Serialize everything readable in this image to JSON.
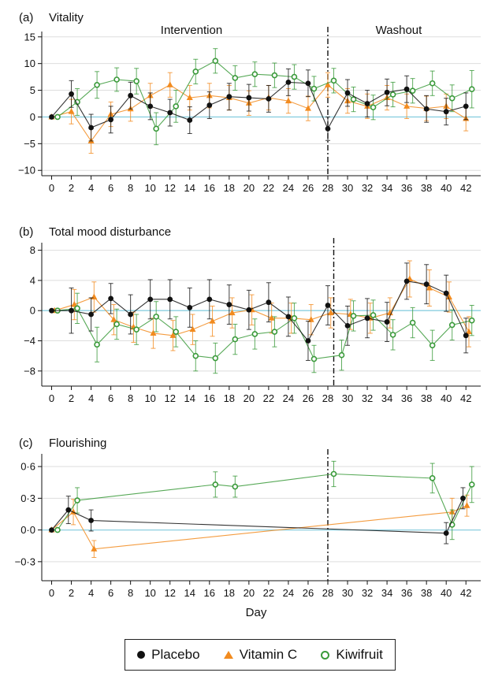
{
  "colors": {
    "placebo": "#111111",
    "vitamin_c": "#f28b1f",
    "kiwifruit": "#3a9a3a",
    "zero_line": "#8ccfe0",
    "grid": "#dddddd"
  },
  "legend": {
    "placebo": "Placebo",
    "vitamin_c": "Vitamin C",
    "kiwifruit": "Kiwifruit"
  },
  "x_axis_title": "Day",
  "chart_data": [
    {
      "type": "line",
      "panel_label": "(a)",
      "title": "Vitality",
      "phase_labels": [
        "Intervention",
        "Washout"
      ],
      "divider_day": 28,
      "xlabel": "Day",
      "xlim": [
        -1,
        43.5
      ],
      "ylim": [
        -11,
        16
      ],
      "yticks": [
        -10,
        -5,
        0,
        5,
        10,
        15
      ],
      "ytick_labels": [
        "−10",
        "−5",
        "0",
        "5",
        "10",
        "15"
      ],
      "xticks": [
        0,
        2,
        4,
        6,
        8,
        10,
        12,
        14,
        16,
        18,
        20,
        22,
        24,
        26,
        28,
        30,
        32,
        34,
        36,
        38,
        40,
        42
      ],
      "series": [
        {
          "name": "Placebo",
          "key": "placebo",
          "marker": "dot",
          "x": [
            0,
            2,
            4,
            6,
            8,
            10,
            12,
            14,
            16,
            18,
            20,
            22,
            24,
            26,
            28,
            30,
            32,
            34,
            36,
            38,
            40,
            42
          ],
          "y": [
            0,
            4.3,
            -2,
            -0.5,
            4,
            2,
            0.8,
            -0.6,
            2.2,
            3.8,
            3.6,
            3.4,
            6.5,
            6.3,
            -2.2,
            4.5,
            2.5,
            4.6,
            5.2,
            1.5,
            1,
            2
          ],
          "err": [
            0,
            2.5,
            2.5,
            2.5,
            2.5,
            2.5,
            2.5,
            2.5,
            2.5,
            2.5,
            2.5,
            2.5,
            2.5,
            2.5,
            2.2,
            2.5,
            2.5,
            2.5,
            2.5,
            2.5,
            2.5,
            2.5
          ]
        },
        {
          "name": "Vitamin C",
          "key": "vitamin_c",
          "marker": "triangle",
          "x": [
            0,
            2,
            4,
            6,
            8,
            10,
            12,
            14,
            16,
            18,
            20,
            22,
            24,
            26,
            28,
            30,
            32,
            34,
            36,
            38,
            40,
            42
          ],
          "y": [
            0,
            1,
            -4.5,
            0.5,
            1.5,
            4,
            6,
            3.6,
            4,
            3.6,
            2.6,
            3.6,
            3,
            1.6,
            6,
            3,
            2,
            3.6,
            2,
            1.6,
            2,
            -0.3
          ],
          "err": [
            0,
            2.3,
            2.3,
            2.3,
            2.3,
            2.3,
            2.3,
            2.3,
            2.3,
            2.3,
            2.3,
            2.3,
            2.3,
            2.3,
            2.3,
            2.3,
            2.3,
            2.3,
            2.3,
            2.3,
            2.3,
            2.3
          ]
        },
        {
          "name": "Kiwifruit",
          "key": "kiwifruit",
          "marker": "ring",
          "x": [
            0.6,
            2.6,
            4.6,
            6.6,
            8.6,
            10.6,
            12.6,
            14.6,
            16.6,
            18.6,
            20.6,
            22.6,
            24.6,
            26.6,
            28.6,
            30.6,
            32.6,
            34.6,
            36.6,
            38.6,
            40.6,
            42.6
          ],
          "y": [
            0,
            2.8,
            6,
            7,
            6.7,
            -2.2,
            2,
            8.5,
            10.5,
            7.3,
            8,
            7.8,
            7.5,
            5.3,
            6.8,
            3.3,
            1.8,
            4.2,
            4.9,
            6.3,
            3.5,
            5.2
          ],
          "err": [
            0,
            2.5,
            2.5,
            2.2,
            2.4,
            3,
            3,
            2.3,
            2.3,
            2.3,
            2.3,
            2.3,
            2.3,
            2.3,
            2.3,
            2.3,
            2.3,
            2.3,
            2.3,
            2.3,
            2.5,
            3.5
          ]
        }
      ]
    },
    {
      "type": "line",
      "panel_label": "(b)",
      "title": "Total mood disturbance",
      "divider_day": 28.6,
      "xlabel": "Day",
      "xlim": [
        -1,
        43.5
      ],
      "ylim": [
        -10,
        9
      ],
      "yticks": [
        -8,
        -4,
        0,
        4,
        8
      ],
      "ytick_labels": [
        "−8",
        "−4",
        "0",
        "4",
        "8"
      ],
      "xticks": [
        0,
        2,
        4,
        6,
        8,
        10,
        12,
        14,
        16,
        18,
        20,
        22,
        24,
        26,
        28,
        30,
        32,
        34,
        36,
        38,
        40,
        42
      ],
      "series": [
        {
          "name": "Placebo",
          "key": "placebo",
          "marker": "dot",
          "x": [
            0,
            2,
            4,
            6,
            8,
            10,
            12,
            14,
            16,
            18,
            20,
            22,
            24,
            26,
            28,
            30,
            32,
            34,
            36,
            38,
            40,
            42
          ],
          "y": [
            0,
            0,
            -0.5,
            1.6,
            -0.5,
            1.5,
            1.5,
            0.4,
            1.5,
            0.8,
            0.1,
            1.1,
            -0.8,
            -4,
            0.7,
            -2,
            -1,
            -1.5,
            3.9,
            3.5,
            2.3,
            -3.3
          ],
          "err": [
            0,
            3,
            2.2,
            2,
            2.6,
            2.6,
            2.6,
            2.6,
            2.6,
            2.6,
            2.6,
            2.6,
            2.6,
            2.6,
            2.6,
            2.6,
            2.6,
            2.6,
            2.4,
            2.6,
            2.4,
            2.3
          ]
        },
        {
          "name": "Vitamin C",
          "key": "vitamin_c",
          "marker": "triangle",
          "x": [
            0.3,
            2.3,
            4.3,
            6.3,
            8.3,
            10.3,
            12.3,
            14.3,
            16.3,
            18.3,
            20.3,
            22.3,
            24.3,
            26.3,
            28.3,
            30.3,
            32.3,
            34.3,
            36.3,
            38.3,
            40.3,
            42.3
          ],
          "y": [
            0,
            0.8,
            1.8,
            -1.2,
            -2.2,
            -3,
            -3.3,
            -2.5,
            -1.4,
            -0.3,
            0.1,
            -1,
            -1,
            -1.2,
            -0.3,
            -0.5,
            -1,
            -0.3,
            4.2,
            3,
            1.8,
            -2.8
          ],
          "err": [
            0,
            2,
            2,
            2,
            2,
            2,
            2,
            2,
            2,
            2,
            2,
            2,
            2,
            2,
            2,
            2,
            2,
            2,
            2.4,
            2.4,
            2,
            2
          ]
        },
        {
          "name": "Kiwifruit",
          "key": "kiwifruit",
          "marker": "ring",
          "x": [
            0.6,
            2.6,
            4.6,
            6.6,
            8.6,
            10.6,
            12.6,
            14.6,
            16.6,
            18.6,
            20.6,
            22.6,
            24.6,
            26.6,
            29.4,
            30.6,
            32.6,
            34.6,
            36.6,
            38.6,
            40.6,
            42.6
          ],
          "y": [
            0,
            0.3,
            -4.5,
            -1.8,
            -2.5,
            -0.8,
            -2.8,
            -6,
            -6.3,
            -3.8,
            -3.1,
            -2.8,
            -1,
            -6.4,
            -5.9,
            -0.7,
            -0.6,
            -3.2,
            -1.6,
            -4.6,
            -1.9,
            -1.3
          ],
          "err": [
            0,
            2,
            2.3,
            2,
            2,
            2,
            2,
            2,
            2,
            2,
            2,
            2,
            2,
            1.8,
            2,
            2,
            2,
            2,
            2,
            2,
            2,
            2
          ]
        }
      ]
    },
    {
      "type": "line",
      "panel_label": "(c)",
      "title": "Flourishing",
      "divider_day": 28,
      "xlabel": "Day",
      "xlim": [
        -1,
        43.5
      ],
      "ylim": [
        -0.48,
        0.72
      ],
      "yticks": [
        -0.3,
        0.0,
        0.3,
        0.6
      ],
      "ytick_labels": [
        "−0·3",
        "0·0",
        "0·3",
        "0·6"
      ],
      "xticks": [
        0,
        2,
        4,
        6,
        8,
        10,
        12,
        14,
        16,
        18,
        20,
        22,
        24,
        26,
        28,
        30,
        32,
        34,
        36,
        38,
        40,
        42
      ],
      "series": [
        {
          "name": "Placebo",
          "key": "placebo",
          "marker": "dot",
          "x": [
            0,
            1.7,
            4,
            40,
            41.7
          ],
          "y": [
            0,
            0.19,
            0.09,
            -0.03,
            0.3
          ],
          "err": [
            0,
            0.13,
            0.1,
            0.1,
            0.1
          ]
        },
        {
          "name": "Vitamin C",
          "key": "vitamin_c",
          "marker": "triangle",
          "x": [
            0,
            2.2,
            4.3,
            40.6,
            42.1
          ],
          "y": [
            0,
            0.17,
            -0.18,
            0.17,
            0.23
          ],
          "err": [
            0,
            0.12,
            0.08,
            0.13,
            0.1
          ]
        },
        {
          "name": "Kiwifruit",
          "key": "kiwifruit",
          "marker": "ring",
          "x": [
            0.6,
            2.6,
            16.6,
            18.6,
            28.6,
            38.6,
            40.6,
            42.6
          ],
          "y": [
            0,
            0.28,
            0.43,
            0.41,
            0.53,
            0.49,
            0.05,
            0.43
          ],
          "err": [
            0,
            0.12,
            0.12,
            0.1,
            0.12,
            0.14,
            0.14,
            0.17
          ]
        }
      ]
    }
  ]
}
